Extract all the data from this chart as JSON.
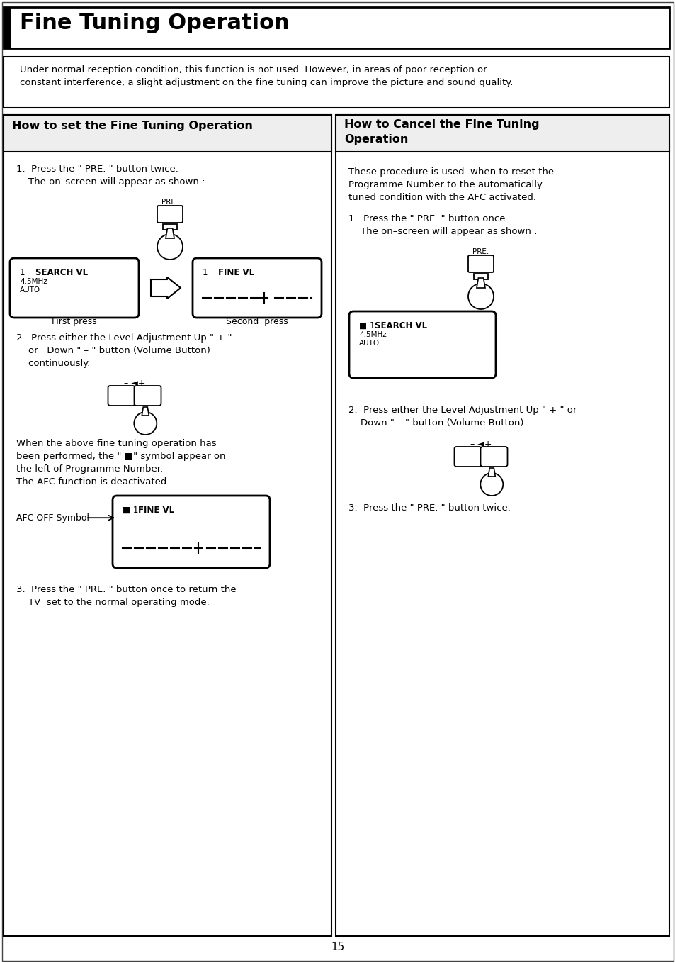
{
  "page_bg": "#ffffff",
  "title": "Fine Tuning Operation",
  "intro_text1": "Under normal reception condition, this function is not used. However, in areas of poor reception or",
  "intro_text2": "constant interference, a slight adjustment on the fine tuning can improve the picture and sound quality.",
  "left_title": "How to set the Fine Tuning Operation",
  "right_title": "How to Cancel the Fine Tuning\nOperation",
  "left_step1a": "1.  Press the \" PRE. \" button twice.",
  "left_step1b": "    The on–screen will appear as shown :",
  "box1_line1a": "1",
  "box1_line1b": "SEARCH VL",
  "box1_line2": "4.5MHz",
  "box1_line3": "AUTO",
  "box1_label": "First press",
  "box2_line1a": "1",
  "box2_line1b": "FINE VL",
  "box2_label": "Second  press",
  "left_step2a": "2.  Press either the Level Adjustment Up \" + \"",
  "left_step2b": "    or   Down \" – \" button (Volume Button)",
  "left_step2c": "    continuously.",
  "left_when1": "When the above fine tuning operation has",
  "left_when2": "been performed, the \" ■\" symbol appear on",
  "left_when3": "the left of Programme Number.",
  "left_when4": "The AFC function is deactivated.",
  "afc_label": "AFC OFF Symbol",
  "afc_box_line1a": "■ 1",
  "afc_box_line1b": "FINE VL",
  "left_step3a": "3.  Press the \" PRE. \" button once to return the",
  "left_step3b": "    TV  set to the normal operating mode.",
  "right_intro1": "These procedure is used  when to reset the",
  "right_intro2": "Programme Number to the automatically",
  "right_intro3": "tuned condition with the AFC activated.",
  "right_step1a": "1.  Press the \" PRE. \" button once.",
  "right_step1b": "    The on–screen will appear as shown :",
  "rbox_line1a": "■1",
  "rbox_line1b": "SEARCH VL",
  "rbox_line2": "4.5MHz",
  "rbox_line3": "AUTO",
  "right_step2a": "2.  Press either the Level Adjustment Up \" + \" or",
  "right_step2b": "    Down \" – \" button (Volume Button).",
  "right_step3": "3.  Press the \" PRE. \" button twice.",
  "page_number": "15"
}
